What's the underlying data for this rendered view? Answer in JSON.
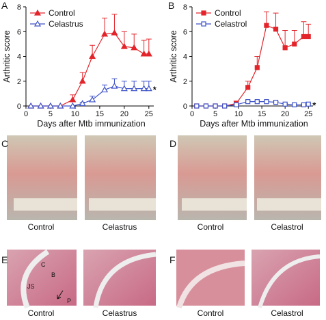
{
  "chart_data": [
    {
      "type": "line",
      "panel_label": "A",
      "xlabel": "Days after Mtb immunization",
      "ylabel": "Arthritic score",
      "xlim": [
        0,
        26
      ],
      "xticks": [
        0,
        5,
        10,
        15,
        20,
        25
      ],
      "ylim": [
        0,
        8
      ],
      "yticks": [
        0,
        2,
        4,
        6,
        8
      ],
      "legend": "upper left",
      "annotation": "*",
      "x": [
        1,
        3,
        5,
        7,
        9.5,
        11.5,
        13.5,
        16,
        18,
        20,
        22,
        24,
        25
      ],
      "series": [
        {
          "name": "Control",
          "color": "#e3242b",
          "marker": "triangle",
          "filled": true,
          "values": [
            0,
            0,
            0,
            0,
            0.5,
            2,
            4,
            5.8,
            5.9,
            4.8,
            4.7,
            4.2,
            4.2
          ],
          "errors": [
            0,
            0,
            0,
            0,
            0.4,
            0.7,
            0.9,
            1.3,
            1.5,
            1.2,
            1.1,
            1.1,
            1.2
          ]
        },
        {
          "name": "Celastrus",
          "color": "#3d52c8",
          "marker": "triangle",
          "filled": false,
          "values": [
            0,
            0,
            0,
            0,
            0,
            0.2,
            0.5,
            1.3,
            1.6,
            1.4,
            1.4,
            1.4,
            1.4
          ],
          "errors": [
            0,
            0,
            0,
            0,
            0,
            0.1,
            0.3,
            0.4,
            0.6,
            0.6,
            0.6,
            0.6,
            0.6
          ]
        }
      ]
    },
    {
      "type": "line",
      "panel_label": "B",
      "xlabel": "Days after Mtb immunization",
      "ylabel": "Arthritic score",
      "xlim": [
        0,
        26
      ],
      "xticks": [
        0,
        5,
        10,
        15,
        20,
        25
      ],
      "ylim": [
        0,
        8
      ],
      "yticks": [
        0,
        2,
        4,
        6,
        8
      ],
      "legend": "upper left",
      "annotation": "*",
      "x": [
        1,
        3,
        5,
        7,
        9.5,
        12,
        14,
        16,
        18,
        20,
        22,
        24,
        25
      ],
      "series": [
        {
          "name": "Control",
          "color": "#e3242b",
          "marker": "square",
          "filled": true,
          "values": [
            0,
            0,
            0,
            0,
            0.2,
            1.5,
            3.1,
            6.5,
            6.2,
            4.7,
            5.0,
            5.6,
            5.6
          ],
          "errors": [
            0,
            0,
            0,
            0,
            0.2,
            0.5,
            0.9,
            1.1,
            1.3,
            1.4,
            1.1,
            1.2,
            1.0
          ]
        },
        {
          "name": "Celastrol",
          "color": "#3d52c8",
          "marker": "square",
          "filled": false,
          "values": [
            0,
            0,
            0,
            0,
            0.1,
            0.35,
            0.35,
            0.35,
            0.3,
            0.15,
            0.1,
            0.1,
            0.15
          ],
          "errors": [
            0,
            0,
            0,
            0,
            0.05,
            0.05,
            0.05,
            0.05,
            0.05,
            0.05,
            0.05,
            0.05,
            0.05
          ]
        }
      ]
    }
  ],
  "panels": {
    "C": {
      "label": "C",
      "captions": [
        "Control",
        "Celastrus"
      ]
    },
    "D": {
      "label": "D",
      "captions": [
        "Control",
        "Celastrol"
      ]
    },
    "E": {
      "label": "E",
      "captions": [
        "Control",
        "Celastrus"
      ],
      "annotations": [
        "C",
        "B",
        "JS",
        "P"
      ]
    },
    "F": {
      "label": "F",
      "captions": [
        "Control",
        "Celastrol"
      ]
    }
  }
}
